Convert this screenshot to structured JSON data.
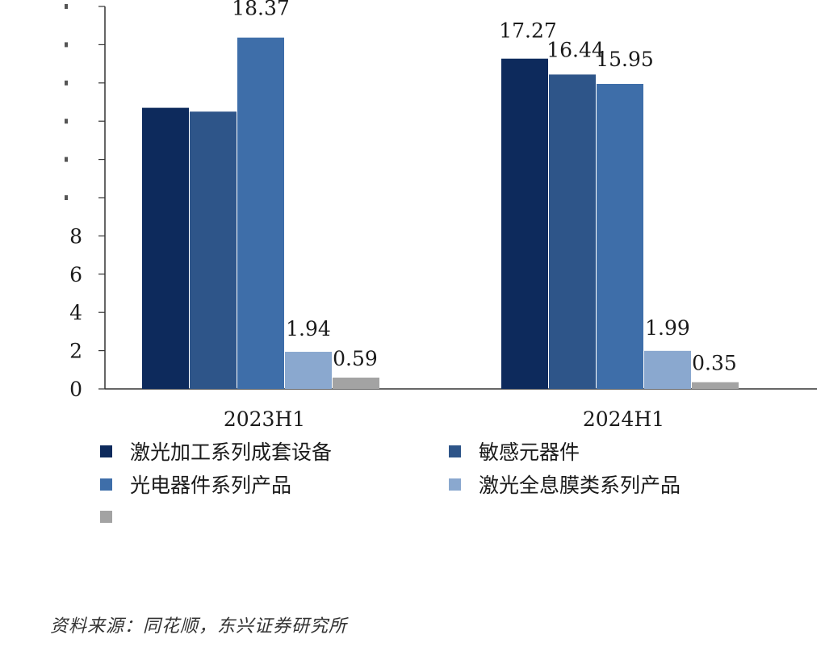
{
  "chart_data": {
    "type": "bar",
    "categories": [
      "2023H1",
      "2024H1"
    ],
    "ylim": [
      0,
      20
    ],
    "yticks": [
      0,
      2,
      4,
      6,
      8,
      10,
      12,
      14,
      16,
      18,
      20
    ],
    "ytick_labels": [
      "0",
      "2",
      "4",
      "6",
      "8",
      "",
      "",
      "",
      "",
      "",
      ""
    ],
    "series": [
      {
        "name": "激光加工系列成套设备",
        "values": [
          14.7,
          17.27
        ],
        "labels": [
          "",
          "17.27"
        ],
        "color": "#0d2a5c"
      },
      {
        "name": "敏感元器件",
        "values": [
          14.5,
          16.44
        ],
        "labels": [
          "",
          "16.44"
        ],
        "color": "#2e5589"
      },
      {
        "name": "光电器件系列产品",
        "values": [
          18.37,
          15.95
        ],
        "labels": [
          "18.37",
          "15.95"
        ],
        "color": "#3e6ea9"
      },
      {
        "name": "激光全息膜类系列产品",
        "values": [
          1.94,
          1.99
        ],
        "labels": [
          "1.94",
          "1.99"
        ],
        "color": "#8aa8cf"
      },
      {
        "name": "",
        "values": [
          0.59,
          0.35
        ],
        "labels": [
          "0.59",
          "0.35"
        ],
        "color": "#a3a3a3"
      }
    ],
    "grid": false,
    "legend_position": "bottom"
  },
  "source_text": "资料来源：同花顺，东兴证券研究所"
}
